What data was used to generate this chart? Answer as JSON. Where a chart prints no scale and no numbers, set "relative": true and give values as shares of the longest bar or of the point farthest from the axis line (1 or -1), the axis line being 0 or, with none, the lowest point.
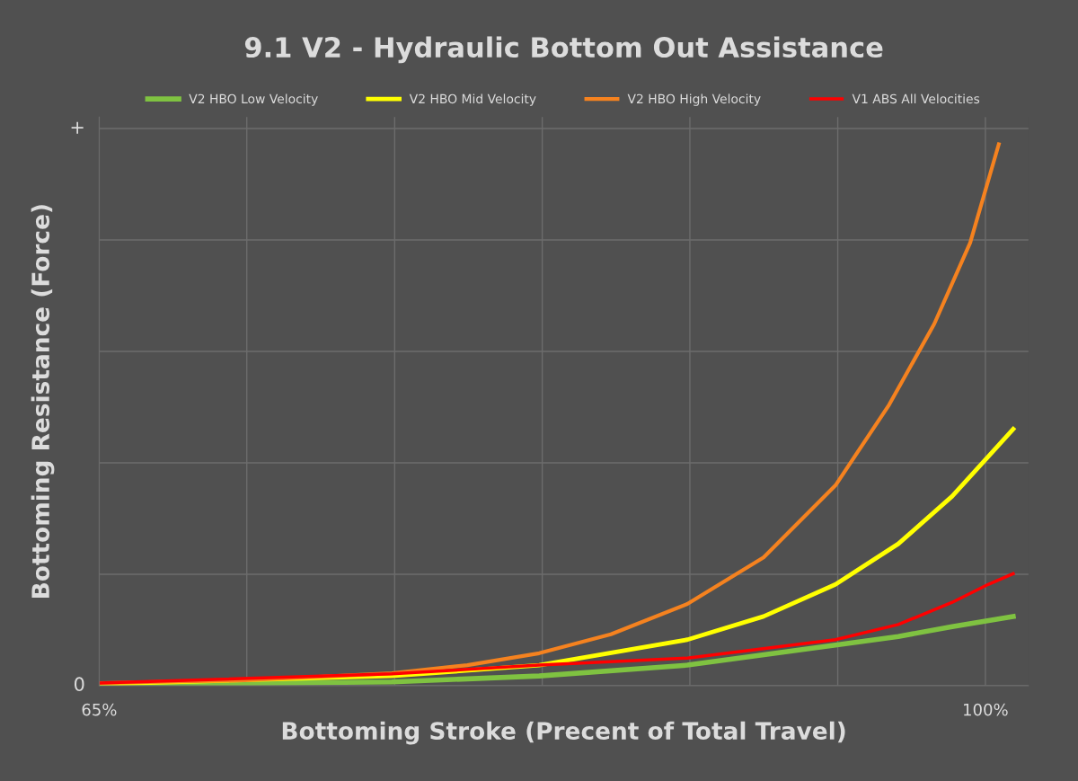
{
  "chart_data": {
    "type": "line",
    "title": "9.1 V2 - Hydraulic Bottom Out Assistance",
    "xlabel": "Bottoming Stroke (Precent of Total Travel)",
    "ylabel": "Bottoming Resistance (Force)",
    "relative": true,
    "xlim": [
      65,
      101.7
    ],
    "xticks": [
      {
        "value": 65,
        "label": "65%"
      },
      {
        "value": 70.83,
        "label": null
      },
      {
        "value": 76.67,
        "label": null
      },
      {
        "value": 82.5,
        "label": null
      },
      {
        "value": 88.33,
        "label": null
      },
      {
        "value": 94.17,
        "label": null
      },
      {
        "value": 100,
        "label": "100%"
      }
    ],
    "grid": true,
    "legend": "top",
    "marker": "none",
    "line_style": "solid",
    "annotations": [
      "+",
      "0"
    ],
    "series": [
      {
        "name": "V2 HBO Low Velocity",
        "color": "#7fc241",
        "x": [
          65,
          76.56,
          82.38,
          88.23,
          94.08,
          96.56,
          98.69,
          101.1
        ],
        "values": [
          0.002,
          0.007,
          0.018,
          0.038,
          0.075,
          0.091,
          0.109,
          0.128
        ]
      },
      {
        "name": "V2 HBO Mid Velocity",
        "color": "#ffff00",
        "x": [
          65,
          76.56,
          82.38,
          88.23,
          91.24,
          94.08,
          96.56,
          98.69,
          100.11,
          101.1
        ],
        "values": [
          0.003,
          0.018,
          0.038,
          0.085,
          0.128,
          0.187,
          0.262,
          0.35,
          0.423,
          0.474
        ]
      },
      {
        "name": "V2 HBO High Velocity",
        "color": "#f5821f",
        "x": [
          65,
          70.74,
          76.56,
          79.54,
          82.38,
          85.21,
          88.23,
          91.24,
          94.08,
          96.2,
          97.98,
          99.4,
          100.53
        ],
        "values": [
          0.005,
          0.01,
          0.023,
          0.038,
          0.06,
          0.095,
          0.151,
          0.237,
          0.37,
          0.519,
          0.668,
          0.818,
          1.0
        ]
      },
      {
        "name": "V1 ABS All Velocities",
        "color": "#ff0000",
        "x": [
          65,
          76.56,
          82.38,
          88.23,
          94.08,
          96.56,
          98.69,
          100.11,
          101.1
        ],
        "values": [
          0.005,
          0.022,
          0.038,
          0.051,
          0.085,
          0.113,
          0.154,
          0.187,
          0.207
        ]
      }
    ]
  }
}
